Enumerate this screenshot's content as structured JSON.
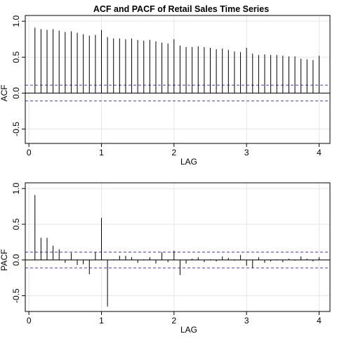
{
  "title": "ACF and PACF of Retail Sales Time Series",
  "colors": {
    "background": "#ffffff",
    "grid": "#e6e6e6",
    "bars": "#000000",
    "conf_band": "#3d3dd6",
    "axis": "#000000"
  },
  "chart_data": [
    {
      "type": "bar",
      "panel": "acf",
      "ylabel": "ACF",
      "xlabel": "LAG",
      "grid": true,
      "xlim": [
        -0.05,
        4.15
      ],
      "ylim": [
        -0.7,
        1.08
      ],
      "xticks": [
        0,
        1,
        2,
        3,
        4
      ],
      "yticks": [
        -0.5,
        0.0,
        0.5,
        1.0
      ],
      "ytick_labels": [
        "-0.5",
        "0.0",
        "0.5",
        "1.0"
      ],
      "conf_limits": [
        0.11,
        -0.11
      ],
      "lags": [
        0.0833,
        0.1667,
        0.25,
        0.3333,
        0.4167,
        0.5,
        0.5833,
        0.6667,
        0.75,
        0.8333,
        0.9167,
        1.0,
        1.0833,
        1.1667,
        1.25,
        1.3333,
        1.4167,
        1.5,
        1.5833,
        1.6667,
        1.75,
        1.8333,
        1.9167,
        2.0,
        2.0833,
        2.1667,
        2.25,
        2.3333,
        2.4167,
        2.5,
        2.5833,
        2.6667,
        2.75,
        2.8333,
        2.9167,
        3.0,
        3.0833,
        3.1667,
        3.25,
        3.3333,
        3.4167,
        3.5,
        3.5833,
        3.6667,
        3.75,
        3.8333,
        3.9167,
        4.0
      ],
      "values": [
        0.91,
        0.89,
        0.88,
        0.89,
        0.87,
        0.85,
        0.86,
        0.84,
        0.82,
        0.8,
        0.81,
        0.88,
        0.78,
        0.76,
        0.76,
        0.75,
        0.76,
        0.74,
        0.73,
        0.74,
        0.72,
        0.7,
        0.69,
        0.75,
        0.66,
        0.64,
        0.64,
        0.65,
        0.64,
        0.63,
        0.61,
        0.62,
        0.6,
        0.58,
        0.57,
        0.63,
        0.55,
        0.53,
        0.54,
        0.53,
        0.53,
        0.52,
        0.51,
        0.51,
        0.48,
        0.47,
        0.46,
        0.52
      ]
    },
    {
      "type": "bar",
      "panel": "pacf",
      "ylabel": "PACF",
      "xlabel": "LAG",
      "grid": true,
      "xlim": [
        -0.05,
        4.15
      ],
      "ylim": [
        -0.72,
        1.08
      ],
      "xticks": [
        0,
        1,
        2,
        3,
        4
      ],
      "yticks": [
        -0.5,
        0.0,
        0.5,
        1.0
      ],
      "ytick_labels": [
        "-0.5",
        "0.0",
        "0.5",
        "1.0"
      ],
      "conf_limits": [
        0.11,
        -0.11
      ],
      "lags": [
        0.0833,
        0.1667,
        0.25,
        0.3333,
        0.4167,
        0.5,
        0.5833,
        0.6667,
        0.75,
        0.8333,
        0.9167,
        1.0,
        1.0833,
        1.1667,
        1.25,
        1.3333,
        1.4167,
        1.5,
        1.5833,
        1.6667,
        1.75,
        1.8333,
        1.9167,
        2.0,
        2.0833,
        2.1667,
        2.25,
        2.3333,
        2.4167,
        2.5,
        2.5833,
        2.6667,
        2.75,
        2.8333,
        2.9167,
        3.0,
        3.0833,
        3.1667,
        3.25,
        3.3333,
        3.4167,
        3.5,
        3.5833,
        3.6667,
        3.75,
        3.8333,
        3.9167,
        4.0
      ],
      "values": [
        0.91,
        0.31,
        0.31,
        0.2,
        0.15,
        -0.04,
        0.1,
        -0.07,
        -0.06,
        -0.2,
        0.11,
        0.59,
        -0.65,
        0.01,
        0.06,
        0.06,
        0.04,
        -0.04,
        0.01,
        0.04,
        -0.05,
        0.11,
        -0.03,
        0.13,
        -0.21,
        -0.05,
        0.02,
        0.04,
        -0.03,
        0.01,
        -0.02,
        0.05,
        0.03,
        -0.01,
        0.07,
        -0.08,
        -0.11,
        0.04,
        -0.04,
        -0.02,
        0.01,
        -0.03,
        0.02,
        -0.01,
        0.05,
        0.02,
        -0.02,
        0.04
      ]
    }
  ]
}
